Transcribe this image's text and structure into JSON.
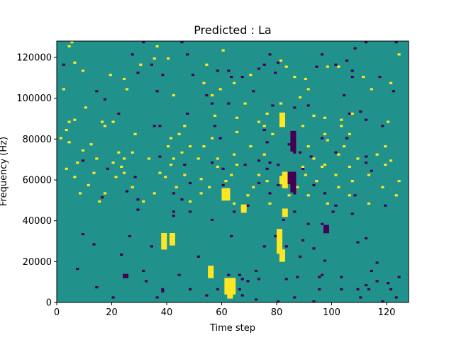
{
  "chart_data": {
    "type": "heatmap",
    "title": "Predicted : La",
    "xlabel": "Time step",
    "ylabel": "Frequency (Hz)",
    "xlim": [
      0,
      128
    ],
    "ylim": [
      0,
      128000
    ],
    "xticks": [
      0,
      20,
      40,
      60,
      80,
      100,
      120
    ],
    "yticks": [
      0,
      20000,
      40000,
      60000,
      80000,
      100000,
      120000
    ],
    "x_tick_labels": [
      "0",
      "20",
      "40",
      "60",
      "80",
      "100",
      "120"
    ],
    "y_tick_labels": [
      "0",
      "20000",
      "40000",
      "60000",
      "80000",
      "100000",
      "120000"
    ],
    "grid": false,
    "legend": "none",
    "n_time_steps": 128,
    "n_freq_bins": 128,
    "bin_hz": 1000,
    "colormap": {
      "background": "#21918c",
      "low": "#440154",
      "high": "#fde725"
    },
    "background_value": 0,
    "low_cells": [
      [
        31,
        127,
        1
      ],
      [
        45,
        127,
        1
      ],
      [
        112,
        127,
        1
      ],
      [
        123,
        127,
        1
      ],
      [
        108,
        124,
        1
      ],
      [
        27,
        121,
        1
      ],
      [
        47,
        121,
        1
      ],
      [
        77,
        121,
        1
      ],
      [
        96,
        121,
        1
      ],
      [
        105,
        118,
        1
      ],
      [
        80,
        117,
        1
      ],
      [
        2,
        116,
        1
      ],
      [
        34,
        116,
        1
      ],
      [
        75,
        116,
        1
      ],
      [
        101,
        116,
        1
      ],
      [
        94,
        115,
        1
      ],
      [
        73,
        114,
        1
      ],
      [
        58,
        113,
        1
      ],
      [
        62,
        113,
        1
      ],
      [
        107,
        113,
        1
      ],
      [
        29,
        112,
        1
      ],
      [
        79,
        112,
        1
      ],
      [
        38,
        111,
        1
      ],
      [
        49,
        111,
        1
      ],
      [
        63,
        110,
        1
      ],
      [
        67,
        110,
        1
      ],
      [
        107,
        110,
        1
      ],
      [
        117,
        110,
        1
      ],
      [
        122,
        103,
        1
      ],
      [
        14,
        103,
        1
      ],
      [
        36,
        103,
        1
      ],
      [
        71,
        103,
        1
      ],
      [
        54,
        101,
        1
      ],
      [
        104,
        101,
        1
      ],
      [
        17,
        99,
        1
      ],
      [
        62,
        97,
        1
      ],
      [
        56,
        97,
        1
      ],
      [
        78,
        96,
        1
      ],
      [
        91,
        96,
        1
      ],
      [
        86,
        95,
        1
      ],
      [
        110,
        93,
        1
      ],
      [
        22,
        92,
        1
      ],
      [
        47,
        92,
        1
      ],
      [
        106,
        92,
        1
      ],
      [
        112,
        89,
        1
      ],
      [
        35,
        86,
        1
      ],
      [
        37,
        86,
        1
      ],
      [
        57,
        86,
        1
      ],
      [
        118,
        86,
        1
      ],
      [
        75,
        84,
        1
      ],
      [
        59,
        80,
        1
      ],
      [
        96,
        80,
        1
      ],
      [
        105,
        80,
        1
      ],
      [
        76,
        78,
        1
      ],
      [
        84,
        77,
        1
      ],
      [
        85,
        77,
        1
      ],
      [
        86,
        76,
        1
      ],
      [
        45,
        73,
        1
      ],
      [
        86,
        73,
        1
      ],
      [
        88,
        73,
        1
      ],
      [
        101,
        73,
        1
      ],
      [
        37,
        71,
        1
      ],
      [
        92,
        71,
        1
      ],
      [
        112,
        71,
        1
      ],
      [
        9,
        69,
        1
      ],
      [
        73,
        69,
        1
      ],
      [
        56,
        68,
        1
      ],
      [
        77,
        68,
        1
      ],
      [
        112,
        68,
        1
      ],
      [
        46,
        67,
        1
      ],
      [
        68,
        67,
        1
      ],
      [
        80,
        67,
        1
      ],
      [
        18,
        65,
        1
      ],
      [
        60,
        65,
        1
      ],
      [
        76,
        65,
        1
      ],
      [
        89,
        65,
        1
      ],
      [
        114,
        64,
        1
      ],
      [
        28,
        61,
        1
      ],
      [
        48,
        58,
        1
      ],
      [
        73,
        58,
        1
      ],
      [
        86,
        58,
        1
      ],
      [
        80,
        57,
        1
      ],
      [
        93,
        57,
        1
      ],
      [
        60,
        57,
        1
      ],
      [
        25,
        54,
        1
      ],
      [
        42,
        53,
        1
      ],
      [
        77,
        53,
        1
      ],
      [
        86,
        53,
        1
      ],
      [
        97,
        53,
        1
      ],
      [
        108,
        52,
        1
      ],
      [
        16,
        51,
        1
      ],
      [
        29,
        50,
        1
      ],
      [
        45,
        50,
        1
      ],
      [
        69,
        47,
        1
      ],
      [
        101,
        47,
        1
      ],
      [
        119,
        47,
        1
      ],
      [
        29,
        45,
        1
      ],
      [
        42,
        44,
        1
      ],
      [
        48,
        44,
        1
      ],
      [
        64,
        44,
        1
      ],
      [
        86,
        44,
        1
      ],
      [
        100,
        44,
        1
      ],
      [
        107,
        43,
        1
      ],
      [
        42,
        42,
        1
      ],
      [
        56,
        40,
        1
      ],
      [
        82,
        40,
        1
      ],
      [
        91,
        38,
        1
      ],
      [
        96,
        38,
        1
      ],
      [
        9,
        33,
        1
      ],
      [
        26,
        32,
        1
      ],
      [
        63,
        32,
        1
      ],
      [
        79,
        32,
        1
      ],
      [
        112,
        31,
        1
      ],
      [
        89,
        30,
        1
      ],
      [
        109,
        29,
        1
      ],
      [
        13,
        28,
        1
      ],
      [
        34,
        27,
        1
      ],
      [
        75,
        27,
        1
      ],
      [
        83,
        27,
        1
      ],
      [
        93,
        26,
        1
      ],
      [
        23,
        23,
        1
      ],
      [
        51,
        22,
        1
      ],
      [
        88,
        22,
        1
      ],
      [
        97,
        20,
        1
      ],
      [
        116,
        19,
        1
      ],
      [
        7,
        16,
        1
      ],
      [
        31,
        15,
        1
      ],
      [
        72,
        15,
        1
      ],
      [
        114,
        15,
        1
      ],
      [
        44,
        13,
        1
      ],
      [
        62,
        13,
        1
      ],
      [
        66,
        13,
        1
      ],
      [
        96,
        13,
        1
      ],
      [
        87,
        12,
        1
      ],
      [
        95,
        12,
        1
      ],
      [
        103,
        12,
        1
      ],
      [
        124,
        12,
        1
      ],
      [
        67,
        11,
        1
      ],
      [
        73,
        11,
        1
      ],
      [
        83,
        11,
        1
      ],
      [
        32,
        10,
        1
      ],
      [
        69,
        10,
        1
      ],
      [
        116,
        10,
        1
      ],
      [
        120,
        9,
        1
      ],
      [
        112,
        8,
        1
      ],
      [
        14,
        7,
        1
      ],
      [
        38,
        6,
        1
      ],
      [
        48,
        6,
        1
      ],
      [
        58,
        6,
        1
      ],
      [
        66,
        6,
        1
      ],
      [
        95,
        6,
        1
      ],
      [
        103,
        6,
        1
      ],
      [
        109,
        6,
        1
      ],
      [
        113,
        6,
        1
      ],
      [
        121,
        6,
        1
      ],
      [
        38,
        5,
        1
      ],
      [
        54,
        3,
        1
      ],
      [
        67,
        3,
        1
      ],
      [
        20,
        2,
        1
      ],
      [
        36,
        2,
        1
      ],
      [
        86,
        2,
        1
      ],
      [
        110,
        2,
        1
      ],
      [
        123,
        2,
        1
      ],
      [
        72,
        1,
        1
      ],
      [
        80,
        0,
        1
      ],
      [
        93,
        0,
        1
      ],
      [
        118,
        0,
        1
      ]
    ],
    "high_cells": [
      [
        5,
        127,
        1
      ],
      [
        4,
        125,
        1
      ],
      [
        36,
        125,
        1
      ],
      [
        60,
        123,
        1
      ],
      [
        124,
        121,
        1
      ],
      [
        35,
        119,
        1
      ],
      [
        40,
        119,
        1
      ],
      [
        6,
        117,
        1
      ],
      [
        81,
        118,
        1
      ],
      [
        30,
        116,
        1
      ],
      [
        54,
        116,
        1
      ],
      [
        83,
        115,
        1
      ],
      [
        98,
        115,
        1
      ],
      [
        102,
        115,
        1
      ],
      [
        9,
        113,
        1
      ],
      [
        19,
        111,
        1
      ],
      [
        70,
        111,
        1
      ],
      [
        86,
        110,
        1
      ],
      [
        111,
        110,
        1
      ],
      [
        24,
        109,
        1
      ],
      [
        90,
        109,
        1
      ],
      [
        53,
        107,
        1
      ],
      [
        64,
        107,
        1
      ],
      [
        121,
        107,
        1
      ],
      [
        2,
        104,
        1
      ],
      [
        25,
        104,
        1
      ],
      [
        59,
        104,
        1
      ],
      [
        91,
        104,
        1
      ],
      [
        114,
        104,
        1
      ],
      [
        42,
        101,
        1
      ],
      [
        56,
        101,
        1
      ],
      [
        88,
        100,
        1
      ],
      [
        68,
        97,
        1
      ],
      [
        81,
        97,
        1
      ],
      [
        10,
        95,
        1
      ],
      [
        76,
        92,
        1
      ],
      [
        107,
        92,
        1
      ],
      [
        57,
        91,
        1
      ],
      [
        93,
        91,
        1
      ],
      [
        65,
        90,
        1
      ],
      [
        97,
        90,
        1
      ],
      [
        6,
        89,
        1
      ],
      [
        103,
        89,
        1
      ],
      [
        4,
        88,
        1
      ],
      [
        16,
        88,
        1
      ],
      [
        20,
        88,
        1
      ],
      [
        73,
        88,
        1
      ],
      [
        82,
        88,
        1
      ],
      [
        120,
        88,
        1
      ],
      [
        17,
        86,
        1
      ],
      [
        46,
        86,
        1
      ],
      [
        75,
        86,
        1
      ],
      [
        89,
        86,
        1
      ],
      [
        103,
        86,
        1
      ],
      [
        3,
        84,
        1
      ],
      [
        28,
        82,
        1
      ],
      [
        44,
        82,
        1
      ],
      [
        65,
        83,
        1
      ],
      [
        78,
        82,
        1
      ],
      [
        97,
        82,
        1
      ],
      [
        106,
        82,
        1
      ],
      [
        1,
        80,
        1
      ],
      [
        41,
        80,
        1
      ],
      [
        56,
        80,
        1
      ],
      [
        98,
        79,
        1
      ],
      [
        4,
        78,
        1
      ],
      [
        12,
        77,
        1
      ],
      [
        40,
        76,
        1
      ],
      [
        48,
        76,
        1
      ],
      [
        53,
        76,
        1
      ],
      [
        70,
        76,
        1
      ],
      [
        91,
        76,
        1
      ],
      [
        104,
        76,
        1
      ],
      [
        119,
        76,
        1
      ],
      [
        9,
        74,
        1
      ],
      [
        22,
        73,
        1
      ],
      [
        27,
        73,
        1
      ],
      [
        45,
        73,
        1
      ],
      [
        64,
        72,
        1
      ],
      [
        75,
        72,
        1
      ],
      [
        102,
        72,
        1
      ],
      [
        116,
        72,
        1
      ],
      [
        14,
        70,
        1
      ],
      [
        24,
        70,
        1
      ],
      [
        33,
        70,
        1
      ],
      [
        42,
        70,
        1
      ],
      [
        51,
        70,
        1
      ],
      [
        58,
        70,
        1
      ],
      [
        93,
        70,
        1
      ],
      [
        109,
        70,
        1
      ],
      [
        121,
        69,
        1
      ],
      [
        7,
        68,
        1
      ],
      [
        20,
        68,
        1
      ],
      [
        41,
        67,
        1
      ],
      [
        65,
        67,
        1
      ],
      [
        97,
        67,
        1
      ],
      [
        119,
        67,
        1
      ],
      [
        3,
        65,
        1
      ],
      [
        23,
        66,
        1
      ],
      [
        58,
        66,
        1
      ],
      [
        89,
        66,
        1
      ],
      [
        96,
        66,
        1
      ],
      [
        106,
        66,
        1
      ],
      [
        13,
        63,
        1
      ],
      [
        24,
        63,
        1
      ],
      [
        37,
        63,
        1
      ],
      [
        46,
        62,
        1
      ],
      [
        63,
        62,
        1
      ],
      [
        73,
        62,
        1
      ],
      [
        90,
        62,
        1
      ],
      [
        101,
        62,
        1
      ],
      [
        113,
        62,
        1
      ],
      [
        6,
        61,
        1
      ],
      [
        21,
        61,
        1
      ],
      [
        39,
        61,
        1
      ],
      [
        52,
        60,
        1
      ],
      [
        61,
        59,
        1
      ],
      [
        76,
        59,
        1
      ],
      [
        94,
        59,
        1
      ],
      [
        107,
        59,
        1
      ],
      [
        124,
        59,
        1
      ],
      [
        11,
        57,
        1
      ],
      [
        27,
        56,
        1
      ],
      [
        43,
        56,
        1
      ],
      [
        55,
        56,
        1
      ],
      [
        71,
        56,
        1
      ],
      [
        87,
        56,
        1
      ],
      [
        102,
        56,
        1
      ],
      [
        118,
        56,
        1
      ],
      [
        8,
        53,
        1
      ],
      [
        17,
        53,
        1
      ],
      [
        35,
        53,
        1
      ],
      [
        52,
        53,
        1
      ],
      [
        69,
        52,
        1
      ],
      [
        84,
        52,
        1
      ],
      [
        91,
        52,
        1
      ],
      [
        106,
        52,
        1
      ],
      [
        123,
        52,
        1
      ],
      [
        15,
        49,
        1
      ],
      [
        31,
        49,
        1
      ],
      [
        48,
        49,
        1
      ],
      [
        64,
        48,
        1
      ],
      [
        77,
        48,
        1
      ],
      [
        98,
        48,
        1
      ],
      [
        113,
        48,
        1
      ]
    ],
    "high_blocks": [
      [
        81,
        83,
        86,
        93
      ],
      [
        82,
        84,
        56,
        64
      ],
      [
        81,
        83,
        58,
        62
      ],
      [
        82,
        84,
        42,
        46
      ],
      [
        80,
        82,
        24,
        36
      ],
      [
        81,
        83,
        20,
        26
      ],
      [
        61,
        65,
        4,
        12
      ],
      [
        62,
        64,
        2,
        6
      ],
      [
        60,
        63,
        50,
        56
      ],
      [
        67,
        69,
        44,
        48
      ],
      [
        38,
        40,
        26,
        34
      ],
      [
        41,
        43,
        28,
        34
      ],
      [
        55,
        57,
        12,
        18
      ]
    ],
    "low_blocks": [
      [
        85,
        87,
        74,
        84
      ],
      [
        84,
        87,
        58,
        64
      ],
      [
        85,
        87,
        54,
        58
      ],
      [
        24,
        26,
        12,
        14
      ],
      [
        97,
        99,
        34,
        38
      ]
    ]
  }
}
